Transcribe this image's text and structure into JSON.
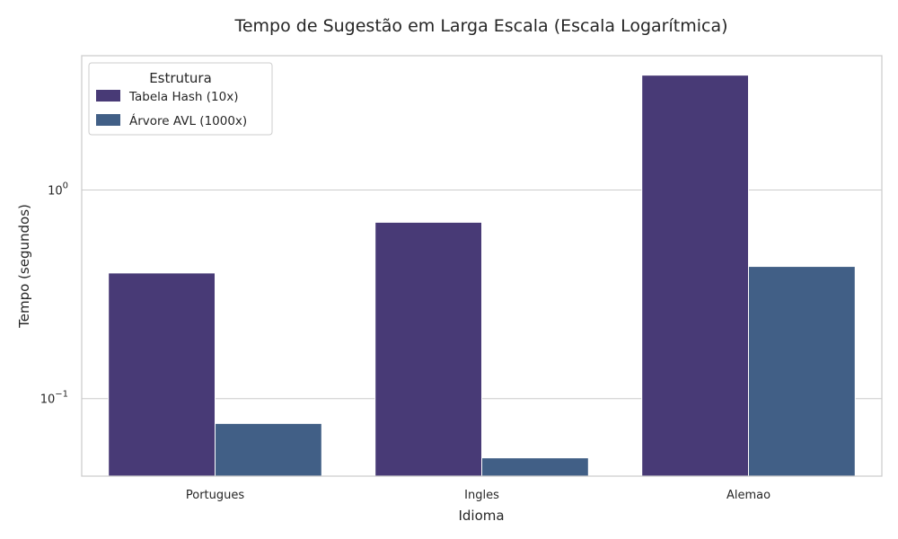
{
  "chart_data": {
    "type": "bar",
    "title": "Tempo de Sugestão em Larga Escala (Escala Logarítmica)",
    "xlabel": "Idioma",
    "ylabel": "Tempo (segundos)",
    "yscale": "log",
    "ylim": [
      0.0425,
      4.4
    ],
    "y_ticks": [
      {
        "value": 0.1,
        "label": "10",
        "exp": "−1"
      },
      {
        "value": 1,
        "label": "10",
        "exp": "0"
      }
    ],
    "categories": [
      "Portugues",
      "Ingles",
      "Alemao"
    ],
    "series": [
      {
        "name": "Tabela Hash (10x)",
        "color": "#483a76",
        "values": [
          0.4,
          0.7,
          3.55
        ]
      },
      {
        "name": "Árvore AVL (1000x)",
        "color": "#415f86",
        "values": [
          0.076,
          0.052,
          0.43
        ]
      }
    ],
    "legend": {
      "title": "Estrutura",
      "position": "top-left"
    },
    "grid": true
  }
}
